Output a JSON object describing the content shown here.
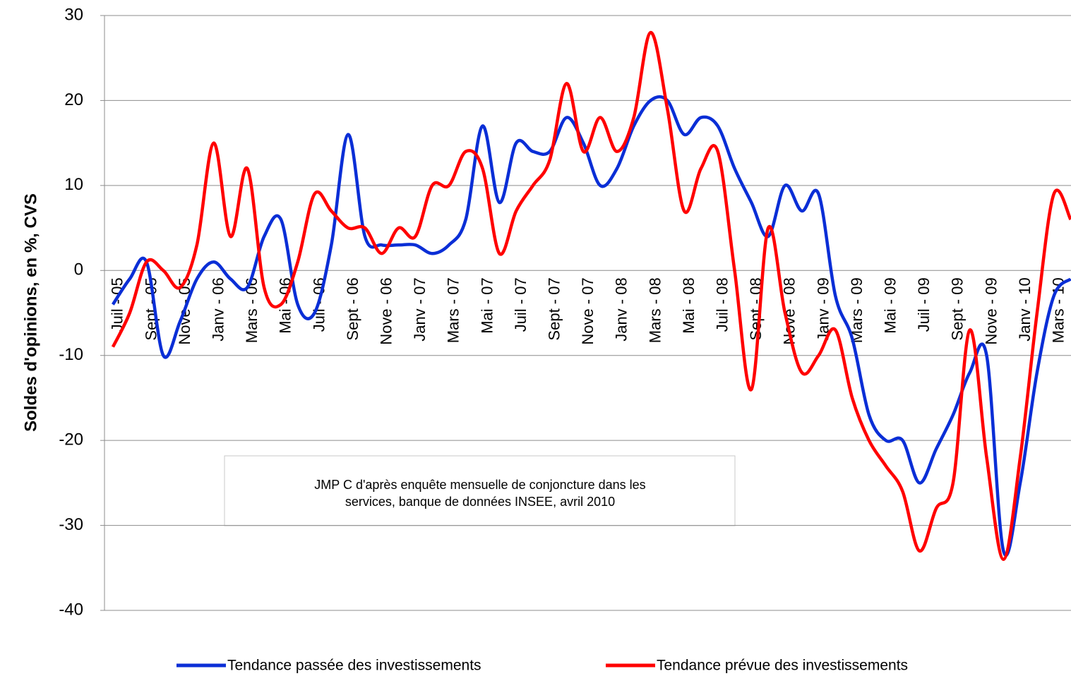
{
  "chart_data": {
    "type": "line",
    "y_label": "Soldes d'opinions, en %, CVS",
    "annotation": [
      "JMP C d'après enquête mensuelle de conjoncture dans les",
      "services, banque de données INSEE, avril 2010"
    ],
    "categories": [
      "Juil - 05",
      null,
      "Sept - 05",
      null,
      "Nove - 05",
      null,
      "Janv - 06",
      null,
      "Mars - 06",
      null,
      "Mai - 06",
      null,
      "Juil - 06",
      null,
      "Sept - 06",
      null,
      "Nove - 06",
      null,
      "Janv - 07",
      null,
      "Mars - 07",
      null,
      "Mai - 07",
      null,
      "Juil - 07",
      null,
      "Sept - 07",
      null,
      "Nove - 07",
      null,
      "Janv - 08",
      null,
      "Mars - 08",
      null,
      "Mai - 08",
      null,
      "Juil - 08",
      null,
      "Sept - 08",
      null,
      "Nove - 08",
      null,
      "Janv - 09",
      null,
      "Mars - 09",
      null,
      "Mai - 09",
      null,
      "Juil - 09",
      null,
      "Sept - 09",
      null,
      "Nove - 09",
      null,
      "Janv - 10",
      null,
      "Mars - 10",
      null
    ],
    "series": [
      {
        "name": "Tendance passée des investissements",
        "color": "#0a2ed6",
        "values": [
          -4,
          -1,
          1,
          -10,
          -6,
          -1,
          1,
          -1,
          -2,
          4,
          6,
          -4,
          -5,
          3,
          16,
          4,
          3,
          3,
          3,
          2,
          3,
          6,
          17,
          8,
          15,
          14,
          14,
          18,
          15,
          10,
          12,
          17,
          20,
          20,
          16,
          18,
          17,
          12,
          8,
          4,
          10,
          7,
          9,
          -3,
          -8,
          -17,
          -20,
          -20,
          -25,
          -21,
          -17,
          -12,
          -10,
          -33,
          -25,
          -12,
          -3,
          -1
        ]
      },
      {
        "name": "Tendance prévue des investissements",
        "color": "#ff0000",
        "values": [
          -9,
          -5,
          1,
          0,
          -2,
          3,
          15,
          4,
          12,
          -2,
          -4,
          1,
          9,
          7,
          5,
          5,
          2,
          5,
          4,
          10,
          10,
          14,
          12,
          2,
          7,
          10,
          13,
          22,
          14,
          18,
          14,
          18,
          28,
          19,
          7,
          12,
          14,
          0,
          -14,
          5,
          -5,
          -12,
          -10,
          -7,
          -15,
          -20,
          -23,
          -26,
          -33,
          -28,
          -25,
          -7,
          -22,
          -34,
          -22,
          -5,
          9,
          6
        ]
      }
    ],
    "ylim": [
      -40,
      30
    ],
    "yticks": [
      -40,
      -30,
      -20,
      -10,
      0,
      10,
      20,
      30
    ],
    "grid": true,
    "legend": "bottom"
  }
}
